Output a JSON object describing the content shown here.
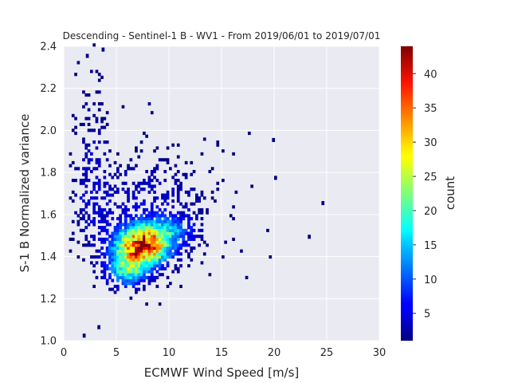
{
  "chart_data": {
    "type": "heatmap",
    "title": "Descending - Sentinel-1 B - WV1 - From 2019/06/01 to 2019/07/01",
    "xlabel": "ECMWF Wind Speed [m/s]",
    "ylabel": "S-1 B Normalized variance",
    "xlim": [
      0,
      30
    ],
    "ylim": [
      1.0,
      2.4
    ],
    "x_ticks": [
      "0",
      "5",
      "10",
      "15",
      "20",
      "25",
      "30"
    ],
    "y_ticks": [
      "1.0",
      "1.2",
      "1.4",
      "1.6",
      "1.8",
      "2.0",
      "2.2",
      "2.4"
    ],
    "grid": true,
    "colormap": "jet",
    "colorbar": {
      "label": "count",
      "range": [
        1,
        44
      ],
      "ticks": [
        "5",
        "10",
        "15",
        "20",
        "25",
        "30",
        "35",
        "40"
      ]
    },
    "density_peak": {
      "wind_speed": 7.5,
      "normalized_variance": 1.45,
      "count": 44
    },
    "bins": {
      "x_width": 0.25,
      "y_width": 0.014
    },
    "outliers": [
      {
        "x": 24.5,
        "y": 1.65
      },
      {
        "x": 23.2,
        "y": 1.49
      },
      {
        "x": 20.0,
        "y": 1.77
      },
      {
        "x": 19.8,
        "y": 1.95
      },
      {
        "x": 1.8,
        "y": 1.02
      },
      {
        "x": 3.2,
        "y": 1.06
      },
      {
        "x": 2.1,
        "y": 2.35
      },
      {
        "x": 3.6,
        "y": 2.38
      }
    ]
  },
  "colors": {
    "axes_background": "#eaeaf2",
    "grid": "#ffffff",
    "text": "#262626"
  }
}
